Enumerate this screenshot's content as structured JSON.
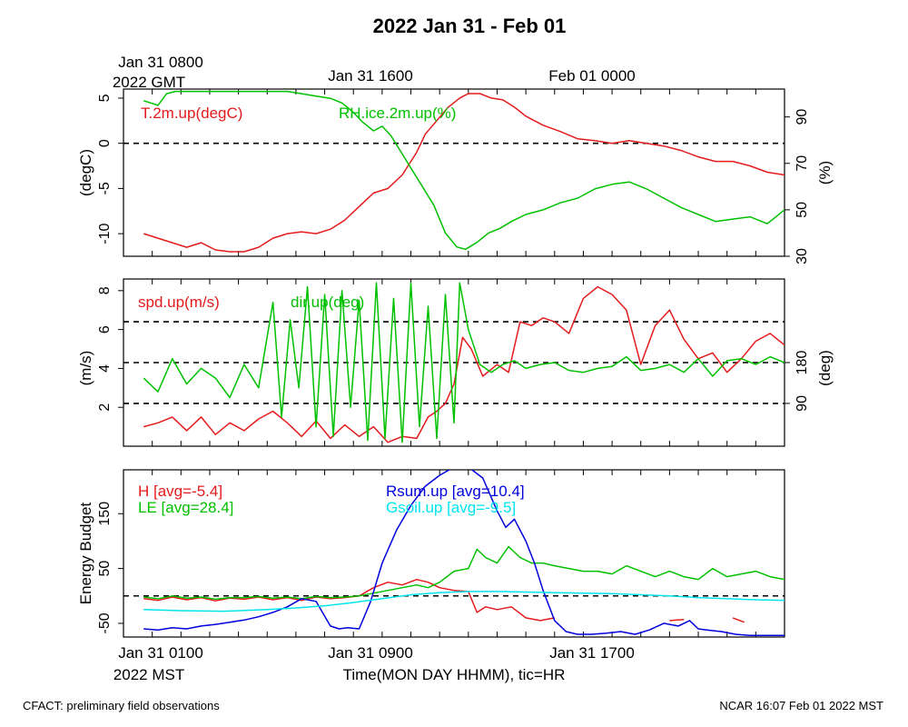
{
  "title": "2022 Jan 31 - Feb 01",
  "colors": {
    "red": "#e41a1c",
    "green": "#00c000",
    "blue": "#0000dd",
    "cyan": "#00e5ee",
    "black": "#000000"
  },
  "top_time_labels": {
    "gmt_ticks": [
      "Jan 31 0800",
      "Jan 31 1600",
      "Feb 01 0000"
    ],
    "gmt_year": "2022 GMT"
  },
  "bottom_time_labels": {
    "mst_ticks": [
      "Jan 31 0100",
      "Jan 31 0900",
      "Jan 31 1700"
    ],
    "mst_year": "2022 MST",
    "xlabel": "Time(MON DAY HHMM), tic=HR"
  },
  "footer": {
    "left": "CFACT: preliminary field observations",
    "right": "NCAR 16:07 Feb 01 2022 MST"
  },
  "chart_data": [
    {
      "type": "line",
      "panel": "temperature-humidity",
      "x_unit": "hours since Jan 31 0000 MST",
      "xlim": [
        0,
        23
      ],
      "ylabel_left": "(degC)",
      "ylabel_right": "(%)",
      "ylim_left": [
        -12.5,
        6
      ],
      "ylim_right": [
        30,
        102
      ],
      "yticks_left": [
        5,
        0,
        -5,
        -10
      ],
      "yticks_left_labels": [
        "5",
        "0",
        "-5",
        "-10"
      ],
      "yticks_right": [
        90,
        70,
        50,
        30
      ],
      "yticks_right_labels": [
        "90",
        "70",
        "50",
        "30"
      ],
      "zero_line": 0,
      "series": [
        {
          "name": "T.2m.up(degC)",
          "axis": "left",
          "color": "red",
          "x": [
            0.7,
            1.2,
            1.7,
            2.2,
            2.7,
            3.2,
            3.7,
            4.2,
            4.7,
            5.2,
            5.7,
            6.2,
            6.7,
            7.2,
            7.7,
            8.2,
            8.7,
            9.2,
            9.7,
            10.2,
            10.5,
            10.9,
            11.3,
            11.7,
            12.0,
            12.4,
            12.8,
            13.2,
            13.6,
            14.0,
            14.6,
            15.2,
            15.8,
            16.4,
            17.0,
            17.6,
            18.2,
            18.8,
            19.4,
            20.0,
            20.6,
            21.2,
            21.8,
            22.4,
            23.0
          ],
          "y": [
            -10.0,
            -10.5,
            -11.0,
            -11.5,
            -11.0,
            -11.8,
            -12.0,
            -12.0,
            -11.5,
            -10.5,
            -10.0,
            -9.8,
            -10.0,
            -9.5,
            -8.5,
            -7.0,
            -5.5,
            -5.0,
            -3.5,
            -1.0,
            1.0,
            2.5,
            4.0,
            5.0,
            5.5,
            5.5,
            5.0,
            4.8,
            4.0,
            3.0,
            2.0,
            1.3,
            0.5,
            0.3,
            0.0,
            0.3,
            0.0,
            -0.3,
            -0.8,
            -1.5,
            -2.0,
            -2.0,
            -2.5,
            -3.2,
            -3.5
          ]
        },
        {
          "name": "RH.ice.2m.up(%)",
          "axis": "right",
          "color": "green",
          "x": [
            0.7,
            1.2,
            1.5,
            1.8,
            2.2,
            2.7,
            3.2,
            3.7,
            4.2,
            4.7,
            5.2,
            5.7,
            6.2,
            6.7,
            7.2,
            7.6,
            8.0,
            8.3,
            8.7,
            9.0,
            9.3,
            9.6,
            10.0,
            10.4,
            10.8,
            11.2,
            11.6,
            11.9,
            12.3,
            12.7,
            13.1,
            13.5,
            14.0,
            14.6,
            15.2,
            15.8,
            16.4,
            17.0,
            17.6,
            18.2,
            18.8,
            19.4,
            20.0,
            20.6,
            21.2,
            21.8,
            22.4,
            23.0
          ],
          "y": [
            97,
            95,
            100,
            101,
            101,
            101,
            101,
            101,
            101,
            101,
            101,
            101,
            100,
            99,
            98,
            96,
            92,
            88,
            84,
            86,
            82,
            76,
            68,
            60,
            52,
            40,
            34,
            33,
            36,
            40,
            42,
            45,
            48,
            50,
            53,
            55,
            59,
            61,
            62,
            59,
            55,
            51,
            48,
            45,
            46,
            47,
            44,
            50
          ]
        }
      ],
      "legend_labels": [
        "T.2m.up(degC)",
        "RH.ice.2m.up(%)"
      ]
    },
    {
      "type": "line",
      "panel": "wind",
      "x_unit": "hours since Jan 31 0000 MST",
      "xlim": [
        0,
        23
      ],
      "ylabel_left": "(m/s)",
      "ylabel_right": "(deg)",
      "ylim_left": [
        0,
        8.6
      ],
      "yticks_left": [
        8,
        6,
        4,
        2
      ],
      "yticks_left_labels": [
        "8",
        "6",
        "4",
        "2"
      ],
      "yticks_right_labels": [
        "180",
        "90"
      ],
      "right_tick_positions_leftunits": [
        4.3,
        2.2
      ],
      "dashed_lines_leftunits": [
        6.4,
        4.3,
        2.2
      ],
      "series": [
        {
          "name": "spd.up(m/s)",
          "axis": "left",
          "color": "red",
          "x": [
            0.7,
            1.2,
            1.7,
            2.2,
            2.7,
            3.2,
            3.7,
            4.2,
            4.7,
            5.2,
            5.7,
            6.2,
            6.7,
            7.2,
            7.7,
            8.2,
            8.7,
            9.2,
            9.7,
            10.2,
            10.6,
            10.9,
            11.2,
            11.5,
            11.8,
            12.1,
            12.5,
            13.0,
            13.4,
            13.8,
            14.2,
            14.6,
            15.0,
            15.5,
            16.0,
            16.5,
            17.0,
            17.5,
            18.0,
            18.5,
            19.0,
            19.5,
            20.0,
            20.5,
            21.0,
            21.5,
            22.0,
            22.5,
            23.0
          ],
          "y": [
            1.0,
            1.2,
            1.5,
            0.8,
            1.5,
            0.6,
            1.2,
            0.8,
            1.4,
            1.8,
            1.2,
            0.5,
            1.3,
            0.4,
            1.1,
            0.5,
            1.0,
            0.2,
            0.5,
            0.4,
            1.5,
            1.8,
            2.2,
            3.2,
            5.6,
            5.0,
            3.6,
            4.2,
            3.8,
            6.4,
            6.2,
            6.6,
            6.4,
            5.8,
            7.6,
            8.2,
            7.8,
            7.0,
            4.2,
            6.2,
            7.0,
            5.5,
            4.5,
            4.8,
            3.8,
            4.5,
            5.4,
            5.8,
            5.2
          ]
        },
        {
          "name": "dir.up(deg)",
          "axis": "left",
          "color": "green",
          "x": [
            0.7,
            1.2,
            1.7,
            2.2,
            2.7,
            3.2,
            3.7,
            4.2,
            4.7,
            5.2,
            5.5,
            5.8,
            6.1,
            6.4,
            6.7,
            7.0,
            7.3,
            7.6,
            7.9,
            8.2,
            8.5,
            8.8,
            9.1,
            9.4,
            9.7,
            10.0,
            10.3,
            10.6,
            10.9,
            11.2,
            11.5,
            11.7,
            12.0,
            12.4,
            12.8,
            13.2,
            13.6,
            14.0,
            14.5,
            15.0,
            15.5,
            16.0,
            16.5,
            17.0,
            17.5,
            18.0,
            18.5,
            19.0,
            19.5,
            20.0,
            20.5,
            21.0,
            21.5,
            22.0,
            22.5,
            23.0
          ],
          "y": [
            3.5,
            2.8,
            4.5,
            3.2,
            4.0,
            3.5,
            2.5,
            4.2,
            3.0,
            7.4,
            1.5,
            6.5,
            3.0,
            8.2,
            1.0,
            7.8,
            0.5,
            8.0,
            2.0,
            7.5,
            0.3,
            8.4,
            0.4,
            7.6,
            0.2,
            8.4,
            1.0,
            7.2,
            0.4,
            7.8,
            1.2,
            8.4,
            6.0,
            4.2,
            3.8,
            4.2,
            4.4,
            4.0,
            4.2,
            4.3,
            3.9,
            3.8,
            4.0,
            4.1,
            4.6,
            3.9,
            4.0,
            4.2,
            3.8,
            4.5,
            3.6,
            4.4,
            4.5,
            4.2,
            4.6,
            4.3
          ]
        }
      ],
      "legend_labels": [
        "spd.up(m/s)",
        "dir.up(deg)"
      ]
    },
    {
      "type": "line",
      "panel": "energy-budget",
      "x_unit": "hours since Jan 31 0000 MST",
      "xlim": [
        0,
        23
      ],
      "ylabel_left": "Energy Budget",
      "ylim_left": [
        -75,
        230
      ],
      "yticks_left": [
        150,
        50,
        -50
      ],
      "yticks_left_labels": [
        "150",
        "50",
        "-50"
      ],
      "zero_line": 0,
      "series": [
        {
          "name": "H [avg=-5.4]",
          "color": "red",
          "x": [
            0.7,
            1.2,
            1.7,
            2.2,
            2.7,
            3.2,
            3.7,
            4.2,
            4.7,
            5.2,
            5.7,
            6.2,
            6.7,
            7.2,
            7.7,
            8.2,
            8.7,
            9.2,
            9.7,
            10.2,
            10.6,
            11.0,
            11.5,
            12.0,
            12.3,
            12.6,
            13.0,
            13.5,
            14.0,
            14.5,
            15.0
          ],
          "y": [
            -5,
            -8,
            -2,
            -7,
            -3,
            -9,
            -4,
            -6,
            -2,
            -7,
            -3,
            -8,
            -2,
            -5,
            -3,
            0,
            15,
            25,
            20,
            30,
            25,
            15,
            10,
            8,
            -30,
            -20,
            -25,
            -20,
            -40,
            -45,
            -40
          ],
          "extra_segments": [
            {
              "x": [
                19.0,
                19.5
              ],
              "y": [
                -45,
                -43
              ]
            },
            {
              "x": [
                21.2,
                21.6
              ],
              "y": [
                -40,
                -48
              ]
            }
          ]
        },
        {
          "name": "LE [avg=28.4]",
          "color": "green",
          "x": [
            0.7,
            1.2,
            1.7,
            2.2,
            2.7,
            3.2,
            3.7,
            4.2,
            4.7,
            5.2,
            5.7,
            6.2,
            6.7,
            7.2,
            7.7,
            8.2,
            8.7,
            9.2,
            9.7,
            10.2,
            10.6,
            11.0,
            11.5,
            12.0,
            12.3,
            12.6,
            13.0,
            13.4,
            13.8,
            14.2,
            14.6,
            15.0,
            15.5,
            16.0,
            16.5,
            17.0,
            17.5,
            18.0,
            18.5,
            19.0,
            19.5,
            20.0,
            20.5,
            21.0,
            21.5,
            22.0,
            22.5,
            23.0
          ],
          "y": [
            -2,
            -5,
            0,
            -4,
            -2,
            -6,
            -3,
            -3,
            -1,
            -4,
            -2,
            -5,
            -1,
            -3,
            -2,
            0,
            5,
            10,
            15,
            20,
            15,
            25,
            45,
            50,
            85,
            70,
            60,
            90,
            70,
            60,
            60,
            55,
            50,
            45,
            45,
            40,
            55,
            45,
            35,
            45,
            35,
            30,
            50,
            35,
            40,
            45,
            35,
            30
          ]
        },
        {
          "name": "Rsum.up [avg=10.4]",
          "color": "blue",
          "x": [
            0.7,
            1.2,
            1.7,
            2.2,
            2.7,
            3.2,
            3.7,
            4.2,
            4.7,
            5.2,
            5.7,
            6.2,
            6.7,
            7.2,
            7.5,
            7.8,
            8.2,
            8.6,
            9.0,
            9.5,
            10.0,
            10.5,
            11.0,
            11.5,
            12.0,
            12.5,
            13.0,
            13.3,
            13.6,
            14.0,
            14.3,
            14.6,
            15.0,
            15.4,
            15.8,
            16.3,
            16.8,
            17.3,
            17.8,
            18.3,
            18.8,
            19.3,
            19.7,
            20.0,
            20.3,
            20.8,
            21.3,
            21.8,
            22.3,
            23.0
          ],
          "y": [
            -60,
            -62,
            -58,
            -60,
            -55,
            -52,
            -48,
            -44,
            -38,
            -30,
            -20,
            -5,
            -10,
            -55,
            -60,
            -58,
            -60,
            -10,
            60,
            120,
            165,
            200,
            220,
            235,
            235,
            215,
            155,
            125,
            140,
            100,
            60,
            10,
            -45,
            -65,
            -70,
            -70,
            -68,
            -65,
            -70,
            -62,
            -50,
            -55,
            -45,
            -60,
            -62,
            -65,
            -70,
            -72,
            -72,
            -72
          ]
        },
        {
          "name": "Gsoil.up [avg=-9.5]",
          "color": "cyan",
          "x": [
            0.7,
            2.0,
            3.5,
            5.0,
            6.0,
            7.0,
            8.0,
            9.0,
            10.0,
            11.0,
            12.0,
            13.0,
            14.0,
            15.0,
            16.0,
            17.0,
            18.0,
            19.0,
            20.0,
            21.0,
            22.0,
            23.0
          ],
          "y": [
            -25,
            -27,
            -28,
            -25,
            -22,
            -18,
            -12,
            -5,
            2,
            6,
            8,
            8,
            7,
            6,
            5,
            4,
            2,
            0,
            -3,
            -5,
            -7,
            -8
          ]
        }
      ],
      "legend_labels": [
        "H [avg=-5.4]",
        "LE [avg=28.4]",
        "Rsum.up [avg=10.4]",
        "Gsoil.up [avg=-9.5]"
      ]
    }
  ]
}
